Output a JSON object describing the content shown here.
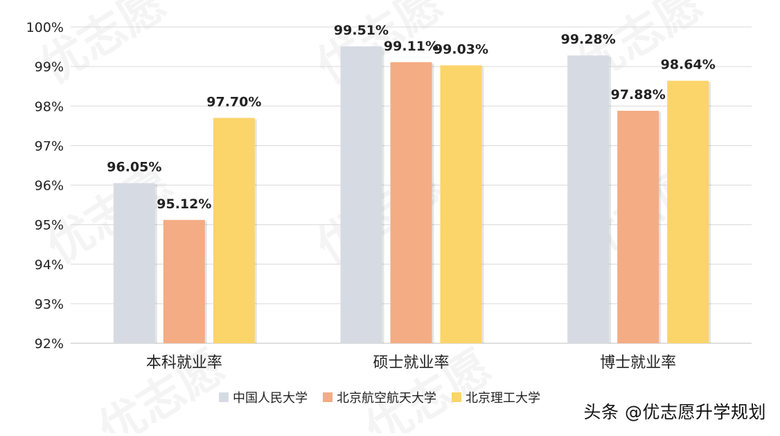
{
  "watermark": {
    "text": "优志愿"
  },
  "credit": "头条 @优志愿升学规划",
  "colors": {
    "series": [
      "#D6DBE3",
      "#F4AC84",
      "#FBD46A"
    ],
    "grid": "#D9D9D9",
    "text": "#222222"
  },
  "chart_data": {
    "type": "bar",
    "title": "",
    "xlabel": "",
    "ylabel": "",
    "categories": [
      "本科就业率",
      "硕士就业率",
      "博士就业率"
    ],
    "series": [
      {
        "name": "中国人民大学",
        "values": [
          96.05,
          99.51,
          99.28
        ],
        "labels": [
          "96.05%",
          "99.51%",
          "99.28%"
        ]
      },
      {
        "name": "北京航空航天大学",
        "values": [
          95.12,
          99.11,
          97.88
        ],
        "labels": [
          "95.12%",
          "99.11%",
          "97.88%"
        ]
      },
      {
        "name": "北京理工大学",
        "values": [
          97.7,
          99.03,
          98.64
        ],
        "labels": [
          "97.70%",
          "99.03%",
          "98.64%"
        ]
      }
    ],
    "ylim": [
      92,
      100
    ],
    "yticks": [
      {
        "value": 100,
        "label": "100%"
      },
      {
        "value": 99,
        "label": "99%"
      },
      {
        "value": 98,
        "label": "98%"
      },
      {
        "value": 97,
        "label": "97%"
      },
      {
        "value": 96,
        "label": "96%"
      },
      {
        "value": 95,
        "label": "95%"
      },
      {
        "value": 94,
        "label": "94%"
      },
      {
        "value": 93,
        "label": "93%"
      },
      {
        "value": 92,
        "label": "92%"
      }
    ],
    "grid": true,
    "legend": "bottom"
  }
}
